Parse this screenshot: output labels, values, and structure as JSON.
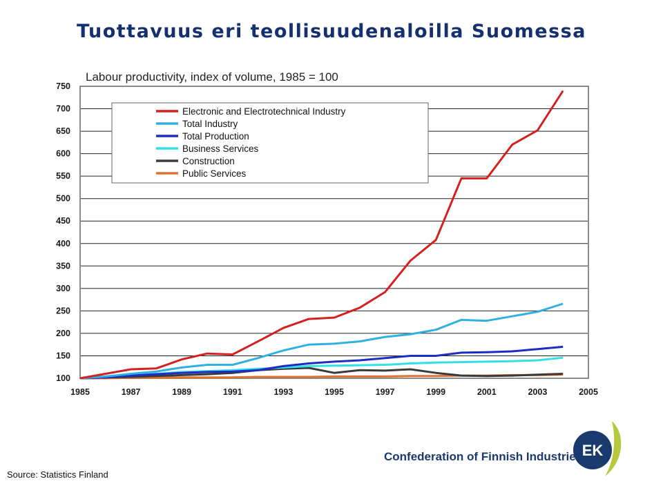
{
  "slide": {
    "title": "Tuottavuus eri teollisuudenaloilla Suomessa",
    "source": "Source: Statistics Finland",
    "organization": "Confederation of Finnish Industries",
    "logo_text": "EK"
  },
  "colors": {
    "title": "#14306e",
    "logo_blue": "#1a3a6e",
    "logo_green": "#b6c83c"
  },
  "chart_data": {
    "type": "line",
    "title": "Labour productivity, index of volume, 1985 = 100",
    "xlabel": "",
    "ylabel": "",
    "xlim": [
      1985,
      2005
    ],
    "ylim": [
      100,
      750
    ],
    "xticks": [
      "1985",
      "1987",
      "1989",
      "1991",
      "1993",
      "1995",
      "1997",
      "1999",
      "2001",
      "2003",
      "2005"
    ],
    "yticks": [
      "100",
      "150",
      "200",
      "250",
      "300",
      "350",
      "400",
      "450",
      "500",
      "550",
      "600",
      "650",
      "700",
      "750"
    ],
    "grid": "horizontal",
    "legend_position": "top-left",
    "x": [
      1985,
      1986,
      1987,
      1988,
      1989,
      1990,
      1991,
      1992,
      1993,
      1994,
      1995,
      1996,
      1997,
      1998,
      1999,
      2000,
      2001,
      2002,
      2003,
      2004
    ],
    "series": [
      {
        "name": "Electronic and Electrotechnical Industry",
        "color": "#d42020",
        "values": [
          100,
          110,
          120,
          122,
          142,
          155,
          153,
          182,
          212,
          232,
          235,
          257,
          292,
          362,
          408,
          545,
          545,
          620,
          652,
          740
        ]
      },
      {
        "name": "Total Industry",
        "color": "#2eb0e0",
        "values": [
          100,
          104,
          110,
          115,
          124,
          130,
          130,
          145,
          162,
          175,
          177,
          182,
          192,
          198,
          208,
          230,
          228,
          238,
          248,
          266
        ]
      },
      {
        "name": "Total Production",
        "color": "#1c2cc4",
        "values": [
          100,
          102,
          106,
          109,
          112,
          114,
          115,
          118,
          127,
          133,
          137,
          140,
          145,
          150,
          150,
          157,
          158,
          160,
          165,
          170
        ]
      },
      {
        "name": "Business Services",
        "color": "#33e0e8",
        "values": [
          100,
          103,
          107,
          110,
          114,
          116,
          118,
          121,
          124,
          127,
          128,
          129,
          130,
          133,
          135,
          136,
          137,
          138,
          140,
          146
        ]
      },
      {
        "name": "Construction",
        "color": "#3a3a3a",
        "values": [
          100,
          102,
          103,
          105,
          107,
          109,
          112,
          118,
          121,
          123,
          112,
          118,
          117,
          120,
          112,
          106,
          105,
          106,
          108,
          110
        ]
      },
      {
        "name": "Public Services",
        "color": "#e07030",
        "values": [
          100,
          100,
          101,
          101,
          102,
          102,
          102,
          103,
          103,
          103,
          104,
          104,
          104,
          105,
          105,
          106,
          106,
          107,
          107,
          108
        ]
      }
    ]
  }
}
